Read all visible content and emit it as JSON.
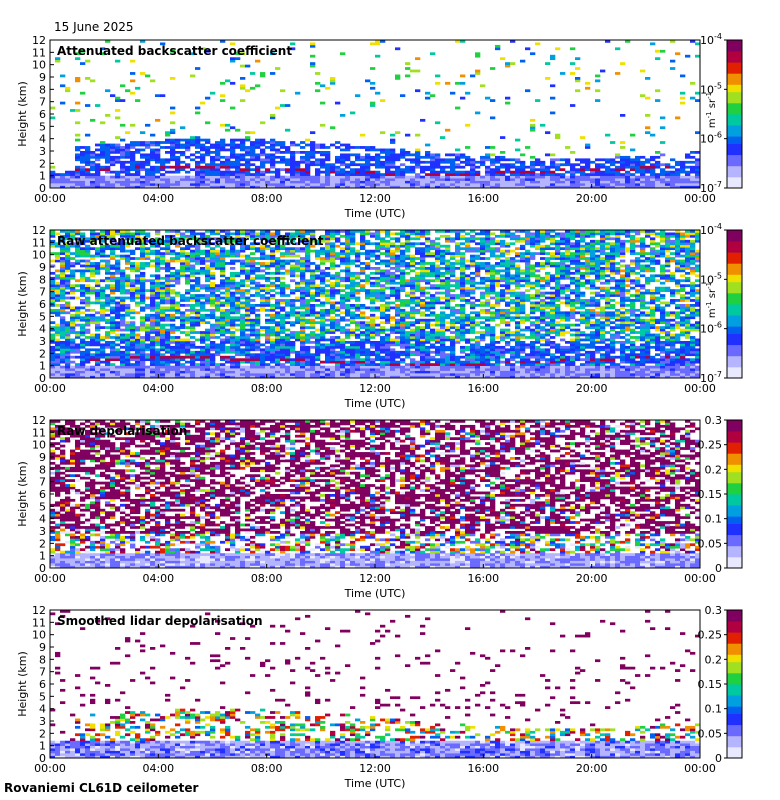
{
  "figure": {
    "date": "15 June 2025",
    "site": "Rovaniemi CL61D ceilometer"
  },
  "chart_data": [
    {
      "type": "heatmap",
      "title": "Attenuated backscatter coefficient",
      "xlabel": "Time (UTC)",
      "ylabel": "Height (km)",
      "x_ticks": [
        "00:00",
        "04:00",
        "08:00",
        "12:00",
        "16:00",
        "20:00",
        "00:00"
      ],
      "x_range_hours": [
        0,
        24
      ],
      "y_ticks": [
        0,
        1,
        2,
        3,
        4,
        5,
        6,
        7,
        8,
        9,
        10,
        11,
        12
      ],
      "ylim": [
        0,
        12
      ],
      "colorbar": {
        "scale": "log",
        "range": [
          1e-07,
          0.0001
        ],
        "ticks": [
          "10-7",
          "10-6",
          "10-5",
          "10-4"
        ],
        "unit": "m-1 sr-1"
      },
      "colormap": "viridis-like rainbow",
      "features": {
        "boundary_layer_top_km": 1.0,
        "cloud_base_km": 1.3,
        "aerosol_layer_top_km": [
          3.2,
          4.0
        ],
        "noise_fraction": 0.06
      }
    },
    {
      "type": "heatmap",
      "title": "Raw attenuated backscatter coefficient",
      "xlabel": "Time (UTC)",
      "ylabel": "Height (km)",
      "x_ticks": [
        "00:00",
        "04:00",
        "08:00",
        "12:00",
        "16:00",
        "20:00",
        "00:00"
      ],
      "x_range_hours": [
        0,
        24
      ],
      "y_ticks": [
        0,
        1,
        2,
        3,
        4,
        5,
        6,
        7,
        8,
        9,
        10,
        11,
        12
      ],
      "ylim": [
        0,
        12
      ],
      "colorbar": {
        "scale": "log",
        "range": [
          1e-07,
          0.0001
        ],
        "ticks": [
          "10-7",
          "10-6",
          "10-5",
          "10-4"
        ],
        "unit": "m-1 sr-1"
      },
      "features": {
        "cloud_base_km": 1.5,
        "noise_fraction": 0.55
      }
    },
    {
      "type": "heatmap",
      "title": "Raw depolarisation",
      "xlabel": "Time (UTC)",
      "ylabel": "Height (km)",
      "x_ticks": [
        "00:00",
        "04:00",
        "08:00",
        "12:00",
        "16:00",
        "20:00",
        "00:00"
      ],
      "x_range_hours": [
        0,
        24
      ],
      "y_ticks": [
        0,
        1,
        2,
        3,
        4,
        5,
        6,
        7,
        8,
        9,
        10,
        11,
        12
      ],
      "ylim": [
        0,
        12
      ],
      "colorbar": {
        "scale": "linear",
        "range": [
          0,
          0.3
        ],
        "ticks": [
          "0",
          "0.05",
          "0.1",
          "0.15",
          "0.2",
          "0.25",
          "0.3"
        ]
      },
      "features": {
        "noise_fraction": 0.65
      }
    },
    {
      "type": "heatmap",
      "title": "Smoothed lidar depolarisation",
      "xlabel": "Time (UTC)",
      "ylabel": "Height (km)",
      "x_ticks": [
        "00:00",
        "04:00",
        "08:00",
        "12:00",
        "16:00",
        "20:00",
        "00:00"
      ],
      "x_range_hours": [
        0,
        24
      ],
      "y_ticks": [
        0,
        1,
        2,
        3,
        4,
        5,
        6,
        7,
        8,
        9,
        10,
        11,
        12
      ],
      "ylim": [
        0,
        12
      ],
      "colorbar": {
        "scale": "linear",
        "range": [
          0,
          0.3
        ],
        "ticks": [
          "0",
          "0.05",
          "0.1",
          "0.15",
          "0.2",
          "0.25",
          "0.3"
        ]
      },
      "features": {
        "aerosol_layer_top_km": [
          3.2,
          4.0
        ],
        "noise_fraction": 0.05
      }
    }
  ]
}
